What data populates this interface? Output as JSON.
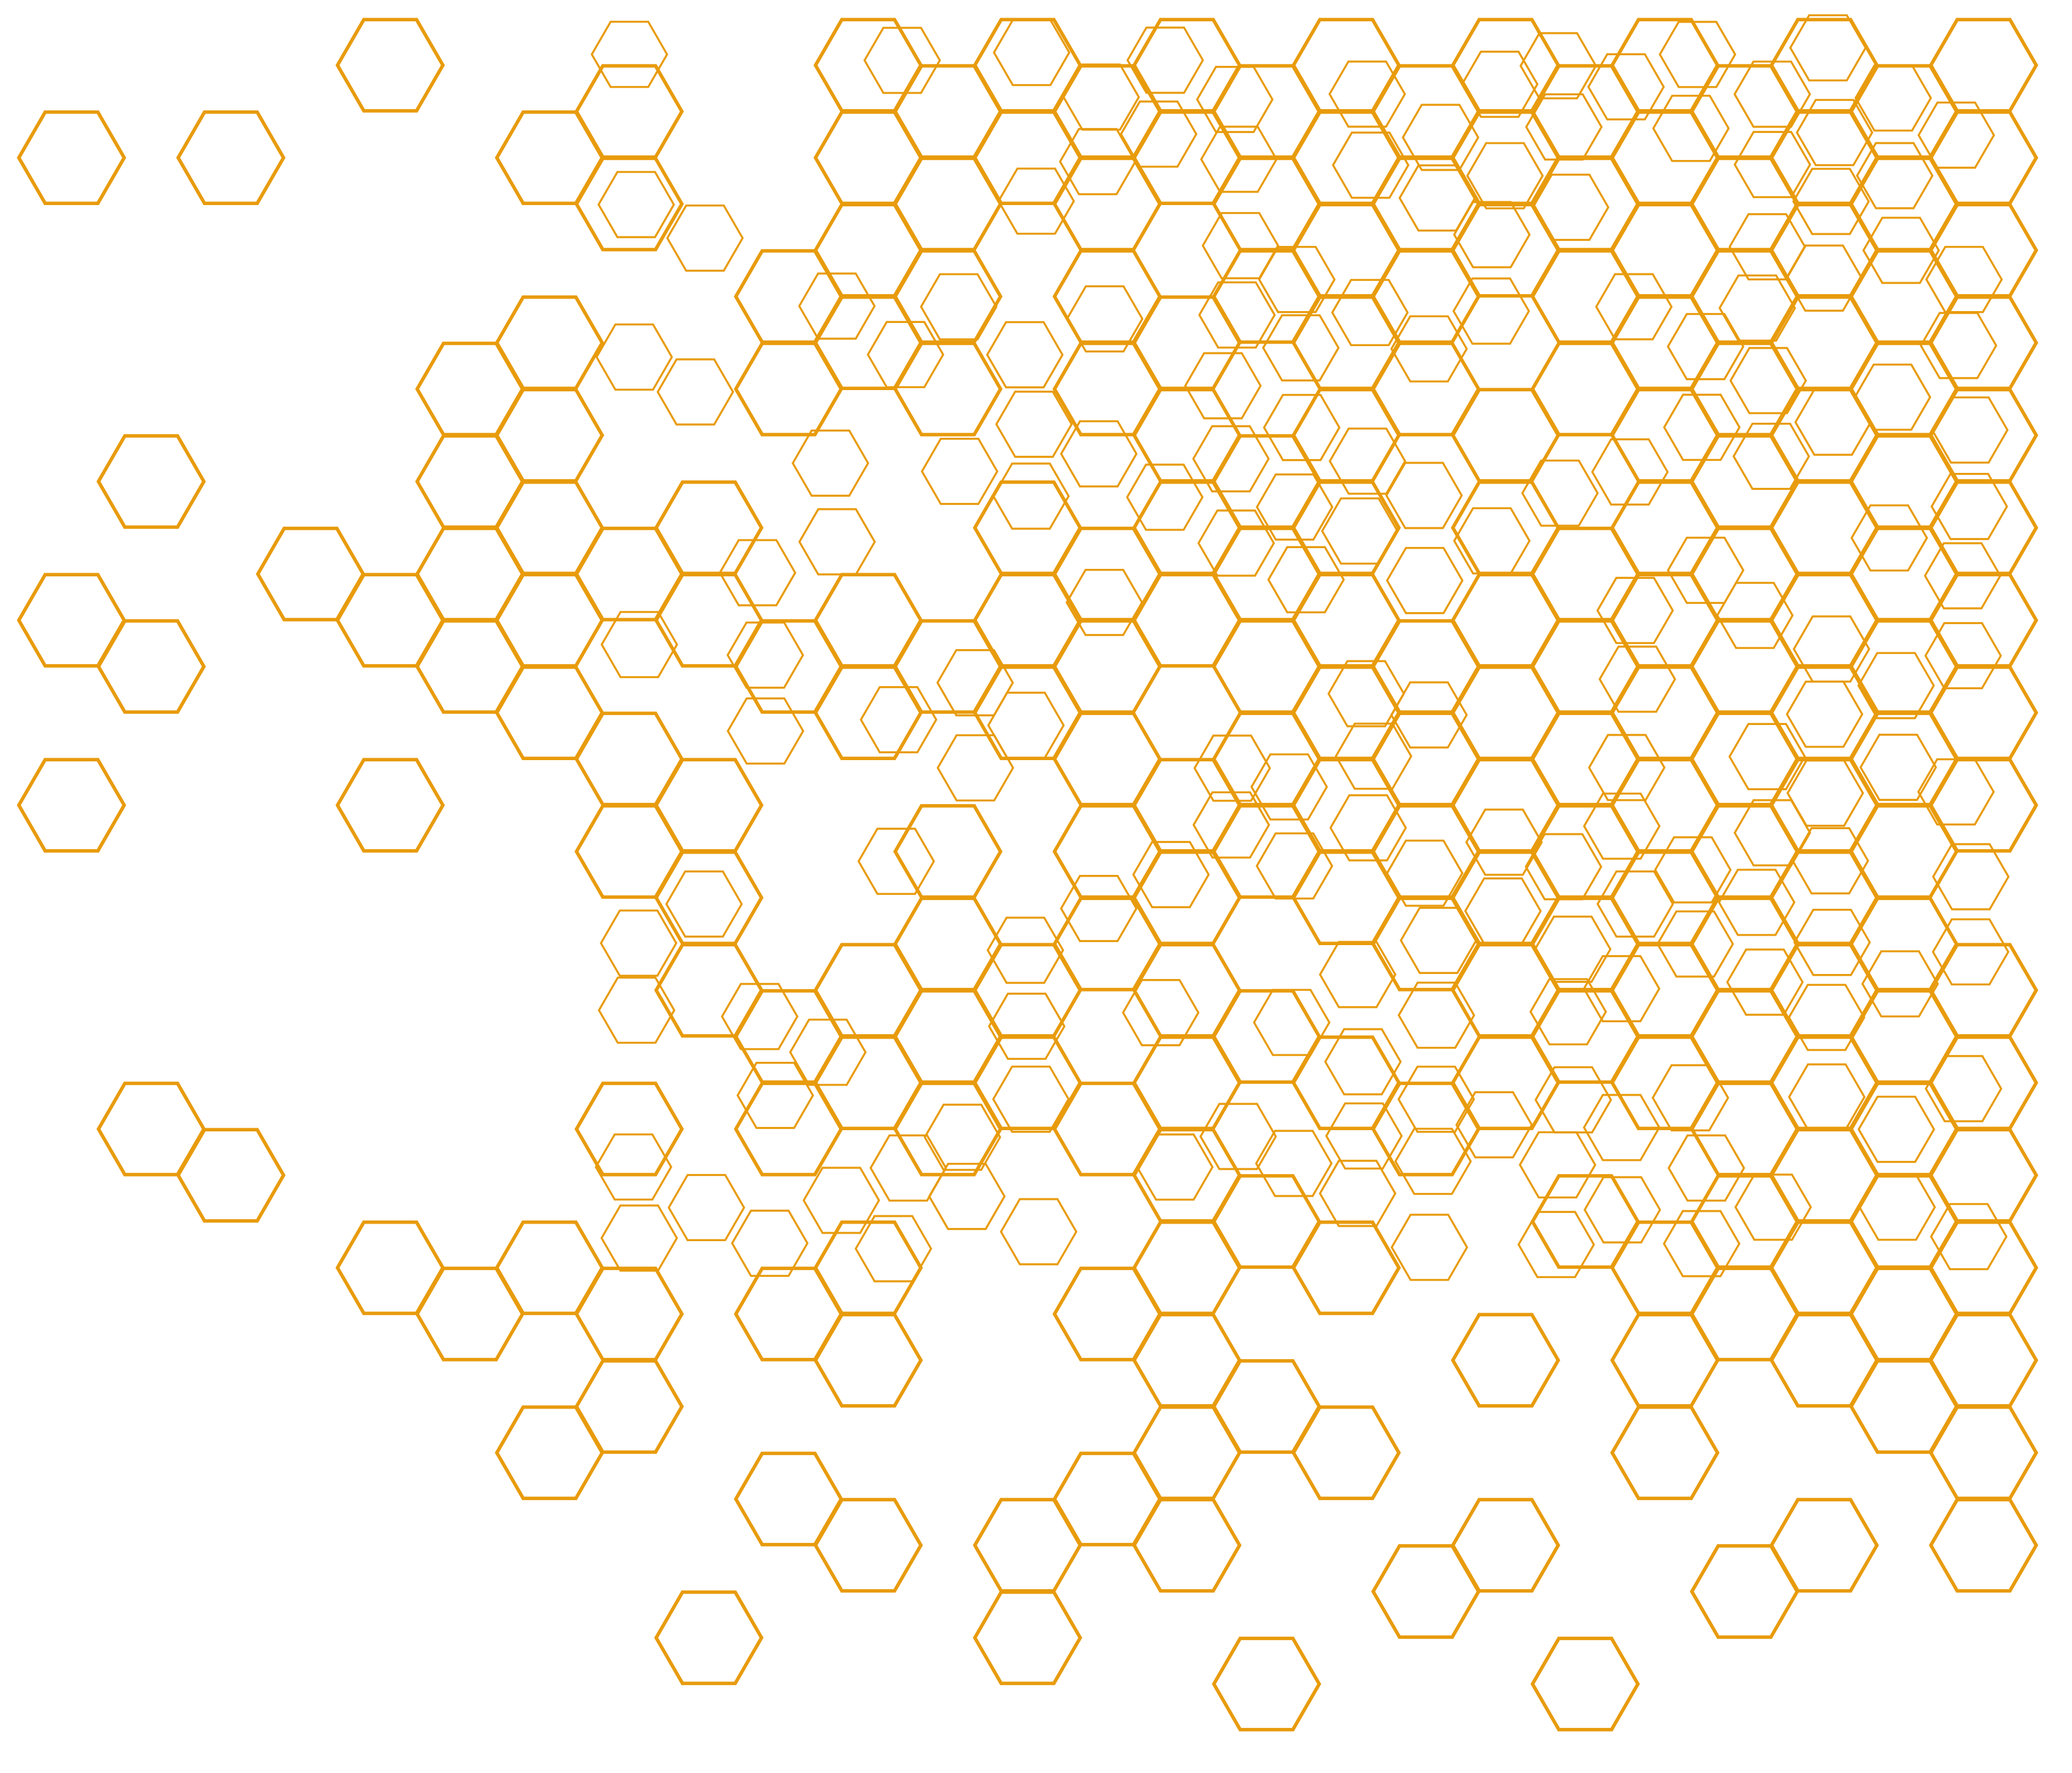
{
  "pattern": {
    "shape": "hexagon",
    "style": "outline",
    "colors": {
      "stroke": "#E89B0C",
      "background": "#FFFFFF"
    }
  }
}
